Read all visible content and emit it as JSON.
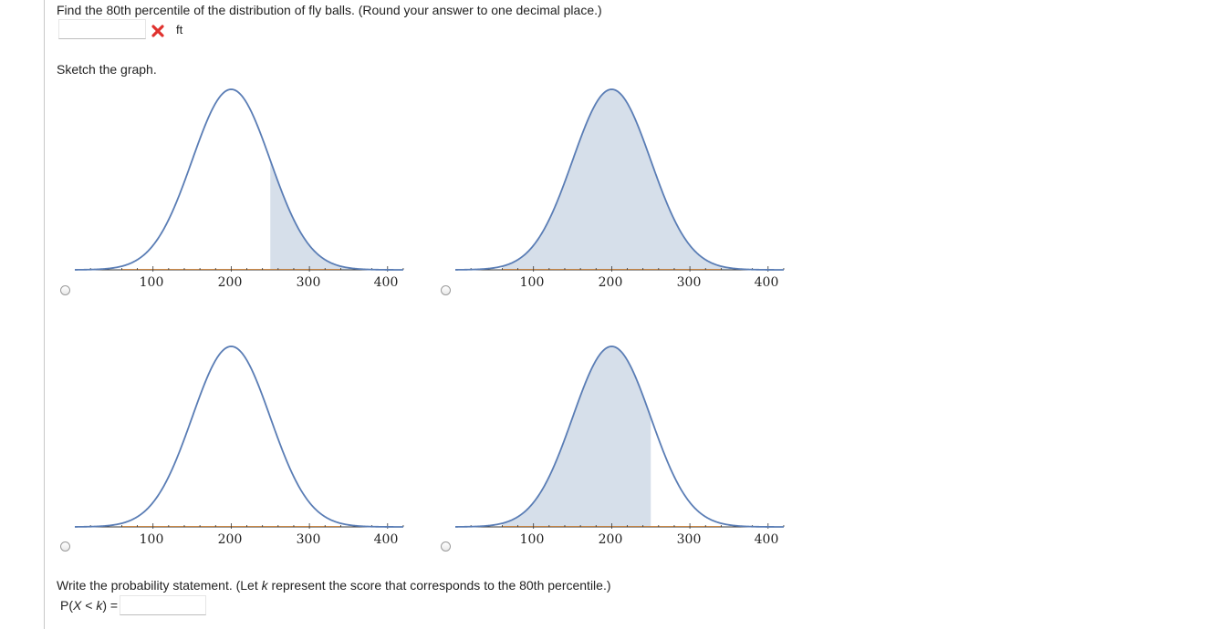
{
  "question": {
    "prompt": "Find the 80th percentile of the distribution of fly balls. (Round your answer to one decimal place.)",
    "answer_value": "",
    "unit": "ft",
    "status": "incorrect"
  },
  "sketch": {
    "prompt": "Sketch the graph.",
    "tick_labels": [
      "100",
      "200",
      "300",
      "400"
    ],
    "options": [
      {
        "shaded_from": 250,
        "shaded_to": 420
      },
      {
        "shaded_from": 60,
        "shaded_to": 420
      },
      {
        "shaded_from": null,
        "shaded_to": null
      },
      {
        "shaded_from": 60,
        "shaded_to": 250
      }
    ],
    "distribution": {
      "mean": 200,
      "sd": 50,
      "x_min": 0,
      "x_max": 420
    },
    "colors": {
      "curve": "#5a7db5",
      "fill": "#d6dfea",
      "axis": "#333333",
      "baseline_accent": "#d9822b"
    }
  },
  "probability": {
    "prompt_before": "Write the probability statement. (Let ",
    "prompt_var": "k",
    "prompt_after": " represent the score that corresponds to the 80th percentile.)",
    "label_p": "P(",
    "label_x": "X",
    "label_lt": " < ",
    "label_k": "k",
    "label_end": ") =",
    "answer_value": ""
  }
}
